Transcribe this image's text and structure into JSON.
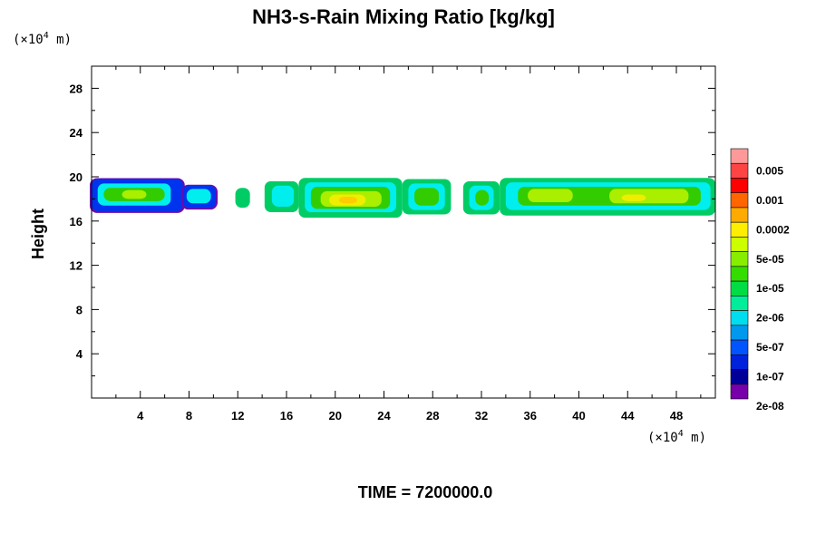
{
  "chart_data": {
    "type": "heatmap",
    "title": "NH3-s-Rain Mixing Ratio [kg/kg]",
    "xlabel": "",
    "ylabel": "Height",
    "x_unit": "(×10",
    "x_unit_exp": "4",
    "x_unit_suffix": " m)",
    "y_unit": "(×10",
    "y_unit_exp": "4",
    "y_unit_suffix": " m)",
    "xlim": [
      0,
      51.2
    ],
    "ylim": [
      0,
      30
    ],
    "x_ticks": [
      4,
      8,
      12,
      16,
      20,
      24,
      28,
      32,
      36,
      40,
      44,
      48
    ],
    "y_ticks": [
      4,
      8,
      12,
      16,
      20,
      24,
      28
    ],
    "colorbar": {
      "labels": [
        "0.005",
        "0.001",
        "0.0002",
        "5e-05",
        "1e-05",
        "2e-06",
        "5e-07",
        "1e-07",
        "2e-08"
      ],
      "colors": [
        "#ff9999",
        "#ff4444",
        "#ff0000",
        "#ff6600",
        "#ffaa00",
        "#ffee00",
        "#ccff00",
        "#88ee00",
        "#33dd00",
        "#00dd44",
        "#00ee99",
        "#00ddee",
        "#0099ee",
        "#0055ff",
        "#0022dd",
        "#000099",
        "#7700aa"
      ]
    },
    "cells": [
      {
        "x0": 0.0,
        "x1": 7.5,
        "y0": 16.9,
        "y1": 19.8,
        "level": 0
      },
      {
        "x0": 7.5,
        "x1": 10.2,
        "y0": 17.2,
        "y1": 19.2,
        "level": 0
      },
      {
        "x0": 11.8,
        "x1": 13.0,
        "y0": 17.2,
        "y1": 19.0,
        "level": 1
      },
      {
        "x0": 14.2,
        "x1": 17.0,
        "y0": 16.8,
        "y1": 19.6,
        "level": 1
      },
      {
        "x0": 17.0,
        "x1": 25.5,
        "y0": 16.3,
        "y1": 19.9,
        "level": 1
      },
      {
        "x0": 25.5,
        "x1": 29.5,
        "y0": 16.6,
        "y1": 19.8,
        "level": 1
      },
      {
        "x0": 30.5,
        "x1": 33.5,
        "y0": 16.6,
        "y1": 19.6,
        "level": 1
      },
      {
        "x0": 33.5,
        "x1": 51.2,
        "y0": 16.5,
        "y1": 19.9,
        "level": 1
      },
      {
        "x0": 0.5,
        "x1": 6.5,
        "y0": 17.4,
        "y1": 19.4,
        "level": 2
      },
      {
        "x0": 7.8,
        "x1": 9.8,
        "y0": 17.6,
        "y1": 18.9,
        "level": 2
      },
      {
        "x0": 14.8,
        "x1": 16.6,
        "y0": 17.3,
        "y1": 19.2,
        "level": 2
      },
      {
        "x0": 17.5,
        "x1": 25.0,
        "y0": 16.8,
        "y1": 19.5,
        "level": 2
      },
      {
        "x0": 26.0,
        "x1": 29.0,
        "y0": 17.0,
        "y1": 19.4,
        "level": 2
      },
      {
        "x0": 31.0,
        "x1": 33.0,
        "y0": 17.0,
        "y1": 19.2,
        "level": 2
      },
      {
        "x0": 34.0,
        "x1": 50.8,
        "y0": 17.0,
        "y1": 19.5,
        "level": 2
      },
      {
        "x0": 1.0,
        "x1": 6.0,
        "y0": 17.8,
        "y1": 19.0,
        "level": 3
      },
      {
        "x0": 18.0,
        "x1": 24.5,
        "y0": 17.1,
        "y1": 19.1,
        "level": 3
      },
      {
        "x0": 26.5,
        "x1": 28.5,
        "y0": 17.4,
        "y1": 19.0,
        "level": 3
      },
      {
        "x0": 31.5,
        "x1": 32.6,
        "y0": 17.4,
        "y1": 18.8,
        "level": 3
      },
      {
        "x0": 35.0,
        "x1": 50.0,
        "y0": 17.4,
        "y1": 19.1,
        "level": 3
      },
      {
        "x0": 2.5,
        "x1": 4.5,
        "y0": 18.0,
        "y1": 18.8,
        "level": 4
      },
      {
        "x0": 18.8,
        "x1": 23.8,
        "y0": 17.3,
        "y1": 18.7,
        "level": 4
      },
      {
        "x0": 35.8,
        "x1": 39.5,
        "y0": 17.7,
        "y1": 18.9,
        "level": 4
      },
      {
        "x0": 42.5,
        "x1": 49.0,
        "y0": 17.6,
        "y1": 18.9,
        "level": 4
      },
      {
        "x0": 19.5,
        "x1": 22.5,
        "y0": 17.4,
        "y1": 18.4,
        "level": 5
      },
      {
        "x0": 43.5,
        "x1": 45.5,
        "y0": 17.8,
        "y1": 18.4,
        "level": 5
      },
      {
        "x0": 20.3,
        "x1": 21.8,
        "y0": 17.6,
        "y1": 18.2,
        "level": 6
      }
    ],
    "level_colors": [
      "#0033ee",
      "#00cc66",
      "#00eeee",
      "#33cc00",
      "#aaee00",
      "#eeee00",
      "#ffcc00"
    ]
  },
  "time_label": "TIME = 7200000.0"
}
